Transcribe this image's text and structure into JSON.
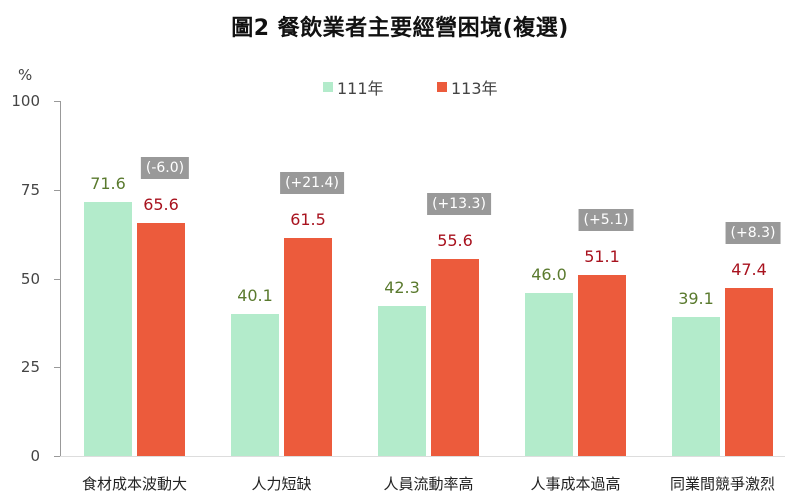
{
  "title": "圖2  餐飲業者主要經營困境(複選)",
  "y_unit": "%",
  "legend": [
    {
      "label": "111年",
      "color": "#b3ebcb"
    },
    {
      "label": "113年",
      "color": "#ec5b3c"
    }
  ],
  "colors": {
    "series_111": "#b3ebcb",
    "series_113": "#ec5b3c",
    "label_111": "#5a7a2e",
    "label_113": "#a8121e",
    "diff_badge_bg": "#999999"
  },
  "chart_data": {
    "type": "bar",
    "title": "圖2  餐飲業者主要經營困境(複選)",
    "xlabel": "",
    "ylabel": "%",
    "ylim": [
      0,
      100
    ],
    "yticks": [
      0,
      25,
      50,
      75,
      100
    ],
    "grid": false,
    "legend_position": "top",
    "categories": [
      "食材成本波動大",
      "人力短缺",
      "人員流動率高",
      "人事成本過高",
      "同業間競爭激烈"
    ],
    "series": [
      {
        "name": "111年",
        "values": [
          71.6,
          40.1,
          42.3,
          46.0,
          39.1
        ]
      },
      {
        "name": "113年",
        "values": [
          65.6,
          61.5,
          55.6,
          51.1,
          47.4
        ]
      }
    ],
    "annotations": [
      "(-6.0)",
      "(+21.4)",
      "(+13.3)",
      "(+5.1)",
      "(+8.3)"
    ]
  },
  "labels": {
    "s111": [
      "71.6",
      "40.1",
      "42.3",
      "46.0",
      "39.1"
    ],
    "s113": [
      "65.6",
      "61.5",
      "55.6",
      "51.1",
      "47.4"
    ],
    "yticks": [
      "0",
      "25",
      "50",
      "75",
      "100"
    ]
  }
}
